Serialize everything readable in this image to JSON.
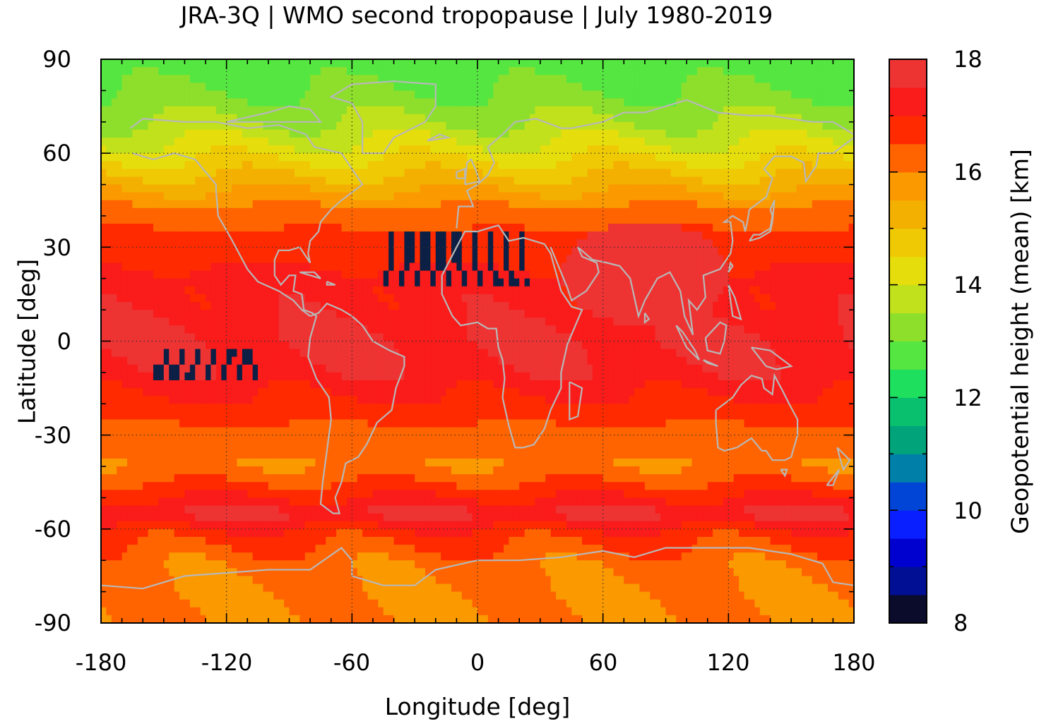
{
  "figure": {
    "title": "JRA-3Q | WMO second tropopause | July 1980-2019",
    "xlabel": "Longitude [deg]",
    "ylabel": "Latitude [deg]",
    "colorbar_label": "Geopotential height (mean) [km]"
  },
  "x_ticks": [
    "-180",
    "-120",
    "-60",
    "0",
    "60",
    "120",
    "180"
  ],
  "y_ticks": [
    "90",
    "60",
    "30",
    "0",
    "-30",
    "-60",
    "-90"
  ],
  "colorbar_ticks": [
    "18",
    "16",
    "14",
    "12",
    "10",
    "8"
  ],
  "colors": {
    "coastline": "#b8b8b8",
    "grid": "#333333",
    "missing": "#0c1f44"
  },
  "chart_data": {
    "type": "heatmap",
    "title": "JRA-3Q | WMO second tropopause | July 1980-2019",
    "xlabel": "Longitude [deg]",
    "ylabel": "Latitude [deg]",
    "xlim": [
      -180,
      180
    ],
    "ylim": [
      -90,
      90
    ],
    "colorbar": {
      "label": "Geopotential height (mean) [km]",
      "range": [
        8,
        18
      ],
      "step": 0.5,
      "colors": [
        "#0b0b2b",
        "#000f94",
        "#0000cf",
        "#0a1fff",
        "#0045d6",
        "#0080a8",
        "#00a37a",
        "#09c06e",
        "#1fe05e",
        "#55e641",
        "#8ddf2c",
        "#c1e11c",
        "#e5de0c",
        "#efca04",
        "#f4b000",
        "#fa9900",
        "#ff6400",
        "#ff2a00",
        "#fa1b1b",
        "#ee3333",
        "#f57a7a",
        "#ffcaca"
      ]
    },
    "zonal_mean_km": [
      {
        "lat": 90,
        "value": 12.8
      },
      {
        "lat": 80,
        "value": 13.0
      },
      {
        "lat": 70,
        "value": 13.5
      },
      {
        "lat": 60,
        "value": 14.3
      },
      {
        "lat": 50,
        "value": 15.3
      },
      {
        "lat": 40,
        "value": 16.3
      },
      {
        "lat": 30,
        "value": 16.7
      },
      {
        "lat": 20,
        "value": 17.2
      },
      {
        "lat": 10,
        "value": 17.3
      },
      {
        "lat": 0,
        "value": 17.6
      },
      {
        "lat": -10,
        "value": 17.4
      },
      {
        "lat": -20,
        "value": 16.9
      },
      {
        "lat": -30,
        "value": 16.3
      },
      {
        "lat": -40,
        "value": 16.0
      },
      {
        "lat": -50,
        "value": 17.0
      },
      {
        "lat": -55,
        "value": 17.7
      },
      {
        "lat": -60,
        "value": 16.9
      },
      {
        "lat": -70,
        "value": 16.2
      },
      {
        "lat": -80,
        "value": 16.0
      },
      {
        "lat": -90,
        "value": 16.0
      }
    ],
    "features": [
      {
        "name": "asian-monsoon-high",
        "lon": [
          40,
          120
        ],
        "lat": [
          5,
          38
        ],
        "value_km": 17.8
      },
      {
        "name": "missing-data-north-africa",
        "lon": [
          -45,
          25
        ],
        "lat": [
          18,
          35
        ],
        "value_km": null
      },
      {
        "name": "missing-data-central-pacific",
        "lon": [
          -155,
          -105
        ],
        "lat": [
          -12,
          -2
        ],
        "value_km": null
      }
    ]
  }
}
